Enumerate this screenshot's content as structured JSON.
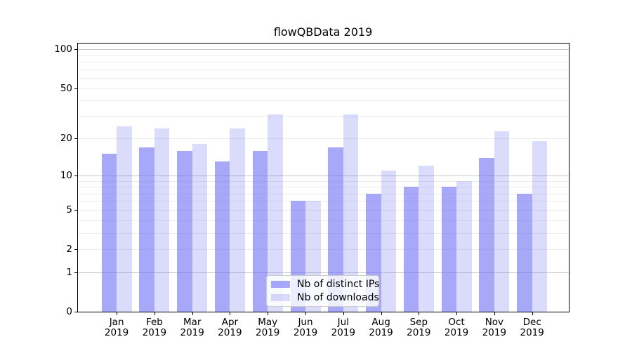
{
  "chart_data": {
    "type": "bar",
    "title": "flowQBData 2019",
    "categories": [
      "Jan",
      "Feb",
      "Mar",
      "Apr",
      "May",
      "Jun",
      "Jul",
      "Aug",
      "Sep",
      "Oct",
      "Nov",
      "Dec"
    ],
    "category_year": "2019",
    "series": [
      {
        "name": "Nb of distinct IPs",
        "color": "#6e6ef5",
        "alpha": 0.6,
        "values": [
          15,
          17,
          16,
          13,
          16,
          6,
          17,
          7,
          8,
          8,
          14,
          7
        ]
      },
      {
        "name": "Nb of downloads",
        "color": "#6e6ef5",
        "alpha": 0.25,
        "values": [
          25,
          24,
          18,
          24,
          31,
          6,
          31,
          11,
          12,
          9,
          23,
          19
        ]
      }
    ],
    "xlabel": "",
    "ylabel": "",
    "y_scale": "log1p",
    "ylim": [
      0,
      112
    ],
    "y_ticks": [
      0,
      1,
      2,
      5,
      10,
      20,
      50,
      100
    ],
    "y_gridlines_major": [
      1,
      10,
      100
    ],
    "y_gridlines_minor": [
      2,
      3,
      4,
      5,
      6,
      7,
      8,
      9,
      20,
      30,
      40,
      50,
      60,
      70,
      80,
      90
    ],
    "grid": "on",
    "legend_position": "lower center"
  },
  "colors": {
    "grid_major": "#c8c8c8",
    "grid_minor": "#ececec",
    "spine": "#000000",
    "text": "#000000",
    "legend_border": "#cccccc"
  }
}
